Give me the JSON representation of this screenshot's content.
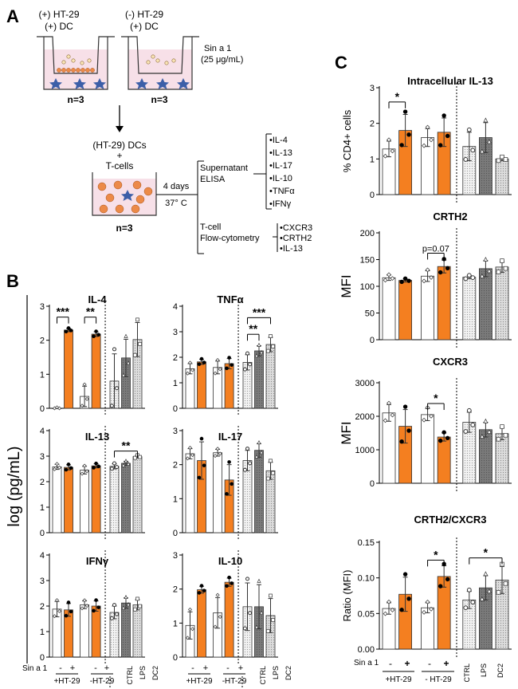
{
  "colors": {
    "orange": "#f47f20",
    "white": "#ffffff",
    "dark_gray": "#6f6f6f",
    "light_gray": "#d2d2d2",
    "mid_gray": "#bcbcbc",
    "cell": "#ec8a48",
    "star": "#3c5fa8",
    "well": "#f7e0e8"
  },
  "panel_a": {
    "letter": "A",
    "well1_label_1": "(+) HT-29",
    "well1_label_2": "(+) DC",
    "well2_label_1": "(-) HT-29",
    "well2_label_2": "(+) DC",
    "sin_line_1": "Sin a 1",
    "sin_line_2": "(25 μg/mL)",
    "n_left": "n=3",
    "n_right": "n=3",
    "coculture_1": "(HT-29) DCs",
    "coculture_2": "+",
    "coculture_3": "T-cells",
    "n_bottom": "n=3",
    "days": "4 days",
    "temp": "37° C",
    "supernatant_1": "Supernatant",
    "supernatant_2": "ELISA",
    "cytokines": [
      "•IL-4",
      "•IL-13",
      "•IL-17",
      "•IL-10",
      "•TNFα",
      "•IFNγ"
    ],
    "tcell_1": "T-cell",
    "tcell_2": "Flow-cytometry",
    "markers": [
      "•CXCR3",
      "•CRTH2",
      "•IL-13"
    ]
  },
  "panel_b": {
    "letter": "B",
    "ylabel": "log  (pg/mL)",
    "sin_label": "Sin a 1",
    "minus": "-",
    "plus": "+",
    "group_labels": [
      "+HT-29",
      "-HT-29"
    ],
    "control_labels": [
      "CTRL",
      "LPS",
      "DC2"
    ]
  },
  "panel_c": {
    "letter": "C",
    "sin_label": "Sin a 1",
    "minus": "-",
    "plus": "+",
    "group_labels": [
      "+HT-29",
      "- HT-29"
    ],
    "control_labels": [
      "CTRL",
      "LPS",
      "DC2"
    ]
  },
  "chart_data": [
    {
      "type": "bar",
      "title": "IL-4",
      "ylim": [
        0,
        3
      ],
      "yticks": [
        "0",
        "1",
        "2",
        "3"
      ],
      "categories": [
        "+HT-29 -",
        "+HT-29 +",
        "-HT-29 -",
        "-HT-29 +",
        "CTRL",
        "LPS",
        "DC2"
      ],
      "values": [
        0.0,
        2.3,
        0.35,
        2.18,
        0.8,
        1.48,
        2.02
      ],
      "errors": [
        0,
        0.05,
        0.3,
        0.07,
        0.8,
        0.55,
        0.5
      ],
      "annotations": [
        "***",
        "**"
      ]
    },
    {
      "type": "bar",
      "title": "TNFα",
      "ylim": [
        0,
        4
      ],
      "yticks": [
        "0",
        "1",
        "2",
        "3",
        "4"
      ],
      "categories": [
        "+HT-29 -",
        "+HT-29 +",
        "-HT-29 -",
        "-HT-29 +",
        "CTRL",
        "LPS",
        "DC2"
      ],
      "values": [
        1.55,
        1.82,
        1.6,
        1.75,
        1.8,
        2.25,
        2.5
      ],
      "errors": [
        0.2,
        0.1,
        0.25,
        0.2,
        0.3,
        0.2,
        0.28
      ],
      "annotations": [
        "**",
        "***"
      ]
    },
    {
      "type": "bar",
      "title": "IL-13",
      "ylim": [
        0,
        4
      ],
      "yticks": [
        "0",
        "1",
        "2",
        "3",
        "4"
      ],
      "categories": [
        "+HT-29 -",
        "+HT-29 +",
        "-HT-29 -",
        "-HT-29 +",
        "CTRL",
        "LPS",
        "DC2"
      ],
      "values": [
        2.58,
        2.56,
        2.45,
        2.62,
        2.6,
        2.72,
        2.98
      ],
      "errors": [
        0.1,
        0.1,
        0.15,
        0.08,
        0.1,
        0.08,
        0.05
      ],
      "annotations": [
        "**"
      ]
    },
    {
      "type": "bar",
      "title": "IL-17",
      "ylim": [
        0,
        3
      ],
      "yticks": [
        "0",
        "1",
        "2",
        "3"
      ],
      "categories": [
        "+HT-29 -",
        "+HT-29 +",
        "-HT-29 -",
        "-HT-29 +",
        "CTRL",
        "LPS",
        "DC2"
      ],
      "values": [
        2.32,
        2.12,
        2.35,
        1.55,
        2.12,
        2.42,
        1.82
      ],
      "errors": [
        0.15,
        0.55,
        0.1,
        0.45,
        0.3,
        0.2,
        0.25
      ],
      "annotations": []
    },
    {
      "type": "bar",
      "title": "IFNγ",
      "ylim": [
        0,
        4
      ],
      "yticks": [
        "0",
        "1",
        "2",
        "3",
        "4"
      ],
      "categories": [
        "+HT-29 -",
        "+HT-29 +",
        "-HT-29 -",
        "-HT-29 +",
        "CTRL",
        "LPS",
        "DC2"
      ],
      "values": [
        1.88,
        1.85,
        2.05,
        2.0,
        1.75,
        2.12,
        2.05
      ],
      "errors": [
        0.3,
        0.25,
        0.15,
        0.2,
        0.25,
        0.2,
        0.2
      ],
      "annotations": []
    },
    {
      "type": "bar",
      "title": "IL-10",
      "ylim": [
        0,
        3
      ],
      "yticks": [
        "0",
        "1",
        "2",
        "3"
      ],
      "categories": [
        "+HT-29 -",
        "+HT-29 +",
        "-HT-29 -",
        "-HT-29 +",
        "CTRL",
        "LPS",
        "DC2"
      ],
      "values": [
        0.93,
        1.98,
        1.3,
        2.2,
        1.48,
        1.48,
        1.22
      ],
      "errors": [
        0.4,
        0.1,
        0.45,
        0.12,
        0.7,
        0.65,
        0.5
      ],
      "annotations": []
    },
    {
      "type": "bar",
      "title": "Intracellular IL-13",
      "ylabel": "% CD4+ cells",
      "ylim": [
        0,
        3
      ],
      "yticks": [
        "0",
        "1",
        "2",
        "3"
      ],
      "categories": [
        "+HT-29 -",
        "+HT-29 +",
        "-HT-29 -",
        "-HT-29 +",
        "CTRL",
        "LPS",
        "DC2"
      ],
      "values": [
        1.28,
        1.8,
        1.6,
        1.75,
        1.35,
        1.6,
        1.0
      ],
      "errors": [
        0.22,
        0.45,
        0.25,
        0.4,
        0.4,
        0.42,
        0.05
      ],
      "annotations": [
        "*"
      ]
    },
    {
      "type": "bar",
      "title": "CRTH2",
      "ylabel": "MFI",
      "ylim": [
        0,
        200
      ],
      "yticks": [
        "0",
        "50",
        "100",
        "150",
        "200"
      ],
      "categories": [
        "+HT-29 -",
        "+HT-29 +",
        "-HT-29 -",
        "-HT-29 +",
        "CTRL",
        "LPS",
        "DC2"
      ],
      "values": [
        116,
        111,
        119,
        137,
        117,
        133,
        136
      ],
      "errors": [
        5,
        3,
        10,
        12,
        3,
        15,
        10
      ],
      "annotations": [
        "p=0.07"
      ]
    },
    {
      "type": "bar",
      "title": "CXCR3",
      "ylabel": "MFI",
      "ylim": [
        0,
        3000
      ],
      "yticks": [
        "0",
        "1000",
        "2000",
        "3000"
      ],
      "categories": [
        "+HT-29 -",
        "+HT-29 +",
        "-HT-29 -",
        "-HT-29 +",
        "CTRL",
        "LPS",
        "DC2"
      ],
      "values": [
        2100,
        1700,
        2050,
        1380,
        1820,
        1600,
        1480
      ],
      "errors": [
        250,
        500,
        180,
        120,
        300,
        220,
        180
      ],
      "annotations": [
        "*"
      ]
    },
    {
      "type": "bar",
      "title": "CRTH2/CXCR3",
      "ylabel": "Ratio (MFI)",
      "ylim": [
        0,
        0.15
      ],
      "yticks": [
        "0.00",
        "0.05",
        "0.10",
        "0.15"
      ],
      "categories": [
        "+HT-29 -",
        "+HT-29 +",
        "-HT-29 -",
        "-HT-29 +",
        "CTRL",
        "LPS",
        "DC2"
      ],
      "values": [
        0.057,
        0.077,
        0.058,
        0.102,
        0.069,
        0.086,
        0.097
      ],
      "errors": [
        0.008,
        0.024,
        0.007,
        0.015,
        0.012,
        0.017,
        0.019
      ],
      "annotations": [
        "*",
        "*"
      ]
    }
  ]
}
